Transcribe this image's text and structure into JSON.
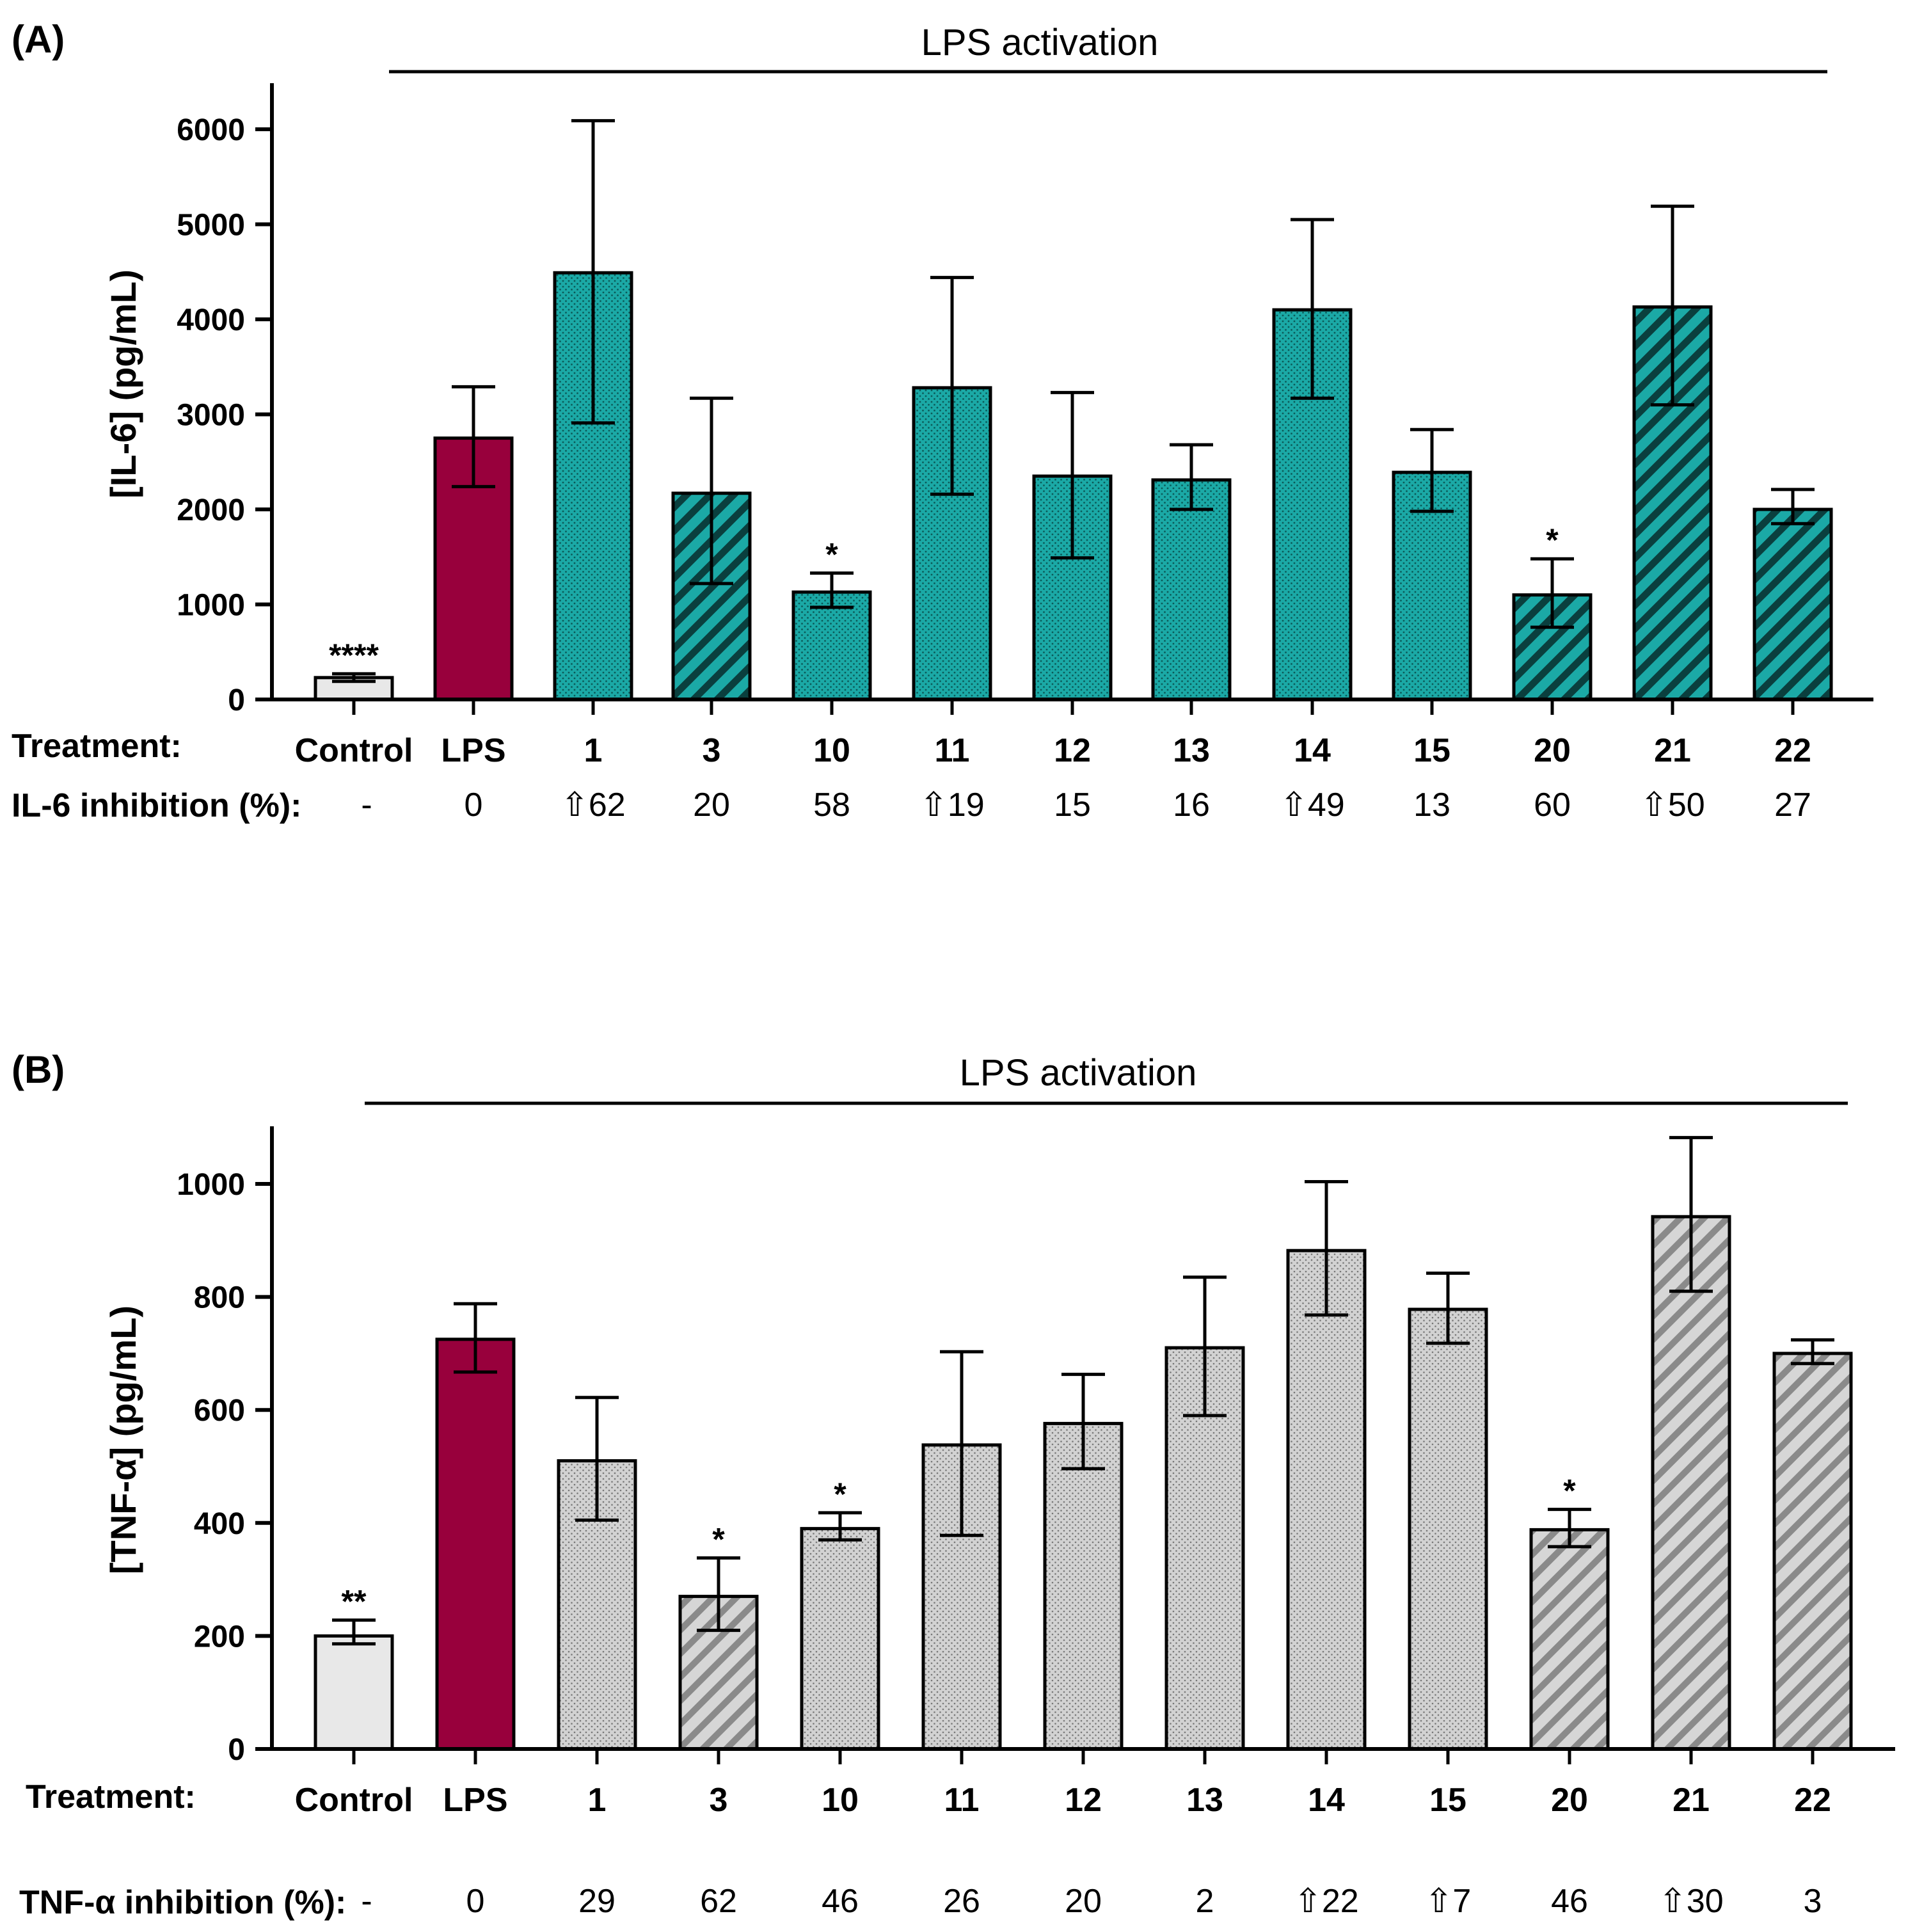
{
  "colors": {
    "control": "#e8e8e8",
    "lps": "#98003c",
    "teal": "#1ba9a6",
    "gray": "#cfcfcf",
    "stroke": "#000000"
  },
  "chart_data": [
    {
      "type": "bar",
      "panel_label": "(A)",
      "activation_label": "LPS activation",
      "ylabel": "[IL-6] (pg/mL)",
      "ylim": [
        0,
        6500
      ],
      "yticks": [
        0,
        1000,
        2000,
        3000,
        4000,
        5000,
        6000
      ],
      "xrow_label": "Treatment:",
      "inhibition_label": "IL-6 inhibition (%):",
      "categories": [
        "Control",
        "LPS",
        "1",
        "3",
        "10",
        "11",
        "12",
        "13",
        "14",
        "15",
        "20",
        "21",
        "22"
      ],
      "values": [
        230,
        2750,
        4490,
        2170,
        1130,
        3280,
        2350,
        2310,
        4100,
        2390,
        1100,
        4130,
        2000
      ],
      "err_upper": [
        270,
        3290,
        6090,
        3170,
        1330,
        4440,
        3230,
        2680,
        5050,
        2840,
        1480,
        5190,
        2210
      ],
      "err_lower": [
        190,
        2240,
        2910,
        1220,
        970,
        2160,
        1490,
        2000,
        3170,
        1980,
        760,
        3100,
        1850
      ],
      "fill": [
        "control",
        "lps",
        "dots",
        "stripes",
        "dots",
        "dots",
        "dots",
        "dots",
        "dots",
        "dots",
        "stripes",
        "stripes",
        "stripes"
      ],
      "significance": [
        "****",
        "",
        "",
        "",
        "*",
        "",
        "",
        "",
        "",
        "",
        "*",
        "",
        ""
      ],
      "inhibition": [
        "-",
        "0",
        "⇧62",
        "20",
        "58",
        "⇧19",
        "15",
        "16",
        "⇧49",
        "13",
        "60",
        "⇧50",
        "27"
      ]
    },
    {
      "type": "bar",
      "panel_label": "(B)",
      "activation_label": "LPS activation",
      "ylabel": "[TNF-α] (pg/mL)",
      "ylim": [
        0,
        1100
      ],
      "yticks": [
        0,
        200,
        400,
        600,
        800,
        1000
      ],
      "xrow_label": "Treatment:",
      "inhibition_label": "TNF-α inhibition (%):",
      "categories": [
        "Control",
        "LPS",
        "1",
        "3",
        "10",
        "11",
        "12",
        "13",
        "14",
        "15",
        "20",
        "21",
        "22"
      ],
      "values": [
        200,
        725,
        510,
        270,
        390,
        538,
        576,
        710,
        882,
        778,
        388,
        942,
        700
      ],
      "err_upper": [
        228,
        788,
        622,
        338,
        418,
        703,
        663,
        835,
        1004,
        842,
        424,
        1082,
        724
      ],
      "err_lower": [
        186,
        667,
        405,
        210,
        370,
        378,
        496,
        590,
        768,
        718,
        358,
        810,
        682
      ],
      "fill": [
        "control",
        "lps",
        "dots",
        "stripes",
        "dots",
        "dots",
        "dots",
        "dots",
        "dots",
        "dots",
        "stripes",
        "stripes",
        "stripes"
      ],
      "significance": [
        "**",
        "",
        "",
        "*",
        "*",
        "",
        "",
        "",
        "",
        "",
        "*",
        "",
        ""
      ],
      "inhibition": [
        "-",
        "0",
        "29",
        "62",
        "46",
        "26",
        "20",
        "2",
        "⇧22",
        "⇧7",
        "46",
        "⇧30",
        "3"
      ]
    }
  ]
}
